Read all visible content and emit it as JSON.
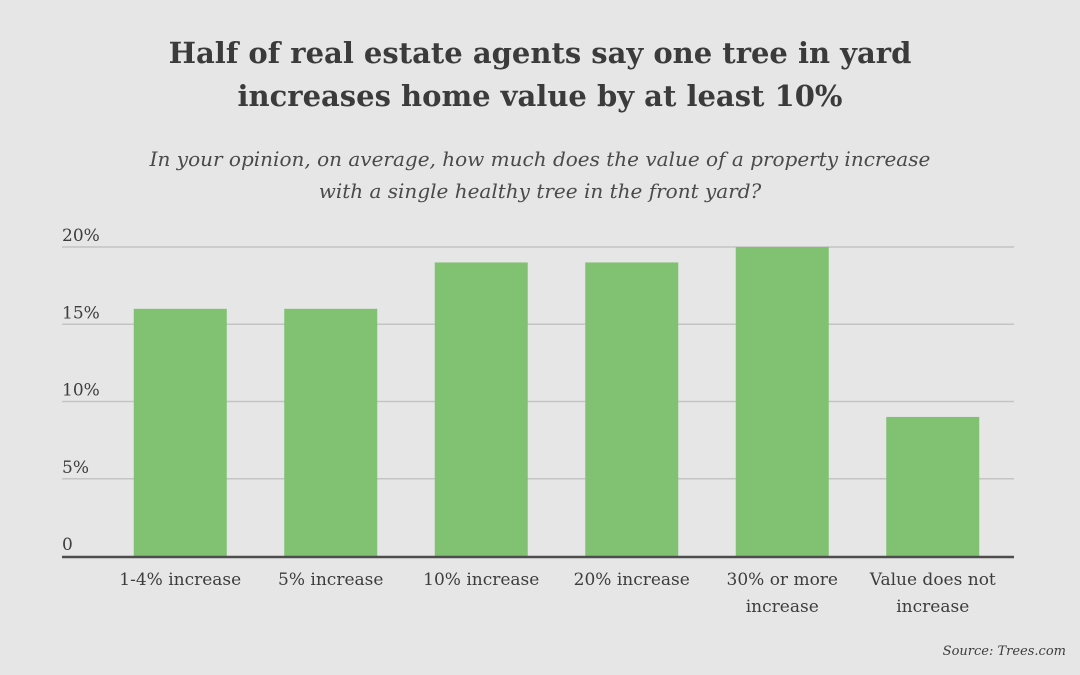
{
  "title_lines": [
    "Half of real estate agents say one tree in yard",
    "increases home value by at least 10%"
  ],
  "subtitle_lines": [
    "In your opinion, on average, how much does the value of a property increase",
    "with a single healthy tree in the front yard?"
  ],
  "source": "Source: Trees.com",
  "chart_data": {
    "type": "bar",
    "categories": [
      "1-4% increase",
      "5% increase",
      "10% increase",
      "20% increase",
      "30% or more increase",
      "Value does not increase"
    ],
    "category_label_lines": [
      [
        "1-4% increase"
      ],
      [
        "5% increase"
      ],
      [
        "10% increase"
      ],
      [
        "20% increase"
      ],
      [
        "30% or more",
        "increase"
      ],
      [
        "Value does not",
        "increase"
      ]
    ],
    "values": [
      16,
      16,
      19,
      19,
      20,
      9
    ],
    "unit": "%",
    "ylim": [
      0,
      20
    ],
    "yticks": [
      0,
      5,
      10,
      15,
      20
    ],
    "ytick_labels": [
      "0",
      "5%",
      "10%",
      "15%",
      "20%"
    ],
    "xlabel": "",
    "ylabel": "",
    "grid": true,
    "bar_color": "#80c172",
    "grid_color": "#c4c4c4",
    "axis_color": "#4d4d4d"
  }
}
